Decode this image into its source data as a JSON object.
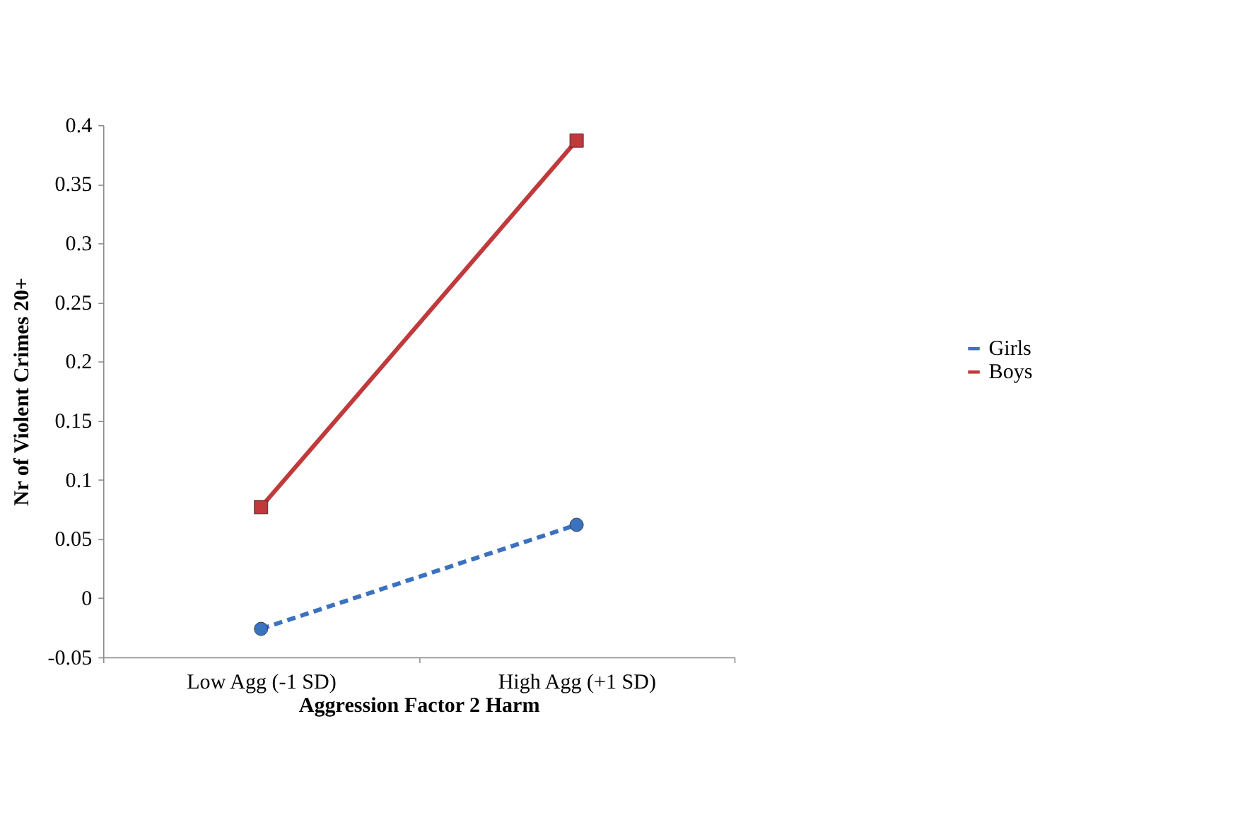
{
  "chart_data": {
    "type": "line",
    "xlabel": "Aggression Factor 2 Harm",
    "ylabel": "Nr of Violent Crimes 20+",
    "categories": [
      "Low Agg (-1 SD)",
      "High Agg (+1 SD)"
    ],
    "series": [
      {
        "name": "Girls",
        "color": "#3b72c0",
        "values": [
          -0.026,
          0.062
        ],
        "line_style": "dashed",
        "marker": "circle"
      },
      {
        "name": "Boys",
        "color": "#c0393b",
        "values": [
          0.077,
          0.387
        ],
        "line_style": "solid",
        "marker": "square"
      }
    ],
    "ylim": [
      -0.05,
      0.4
    ],
    "yticks": [
      -0.05,
      0,
      0.05,
      0.1,
      0.15,
      0.2,
      0.25,
      0.3,
      0.35,
      0.4
    ],
    "grid": false,
    "legend": "right"
  }
}
